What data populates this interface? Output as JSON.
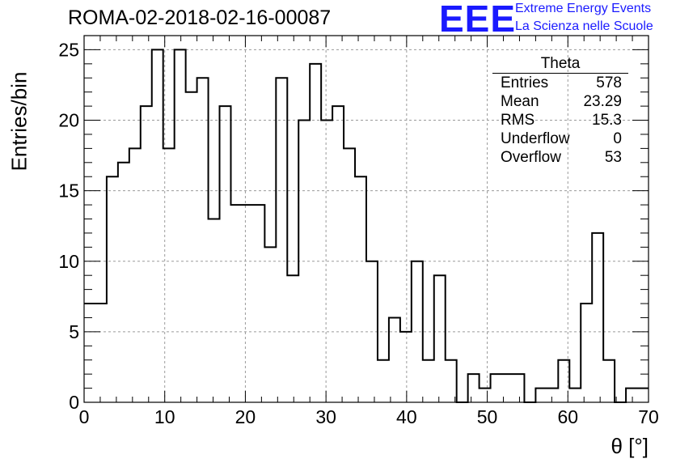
{
  "title": "ROMA-02-2018-02-16-00087",
  "logo": {
    "text": "EEE",
    "line1": "Extreme Energy Events",
    "line2": "La Scienza nelle Scuole",
    "color": "#1a1aff"
  },
  "stats": {
    "title": "Theta",
    "rows": [
      {
        "label": "Entries",
        "value": "578"
      },
      {
        "label": "Mean",
        "value": "23.29"
      },
      {
        "label": "RMS",
        "value": "15.3"
      },
      {
        "label": "Underflow",
        "value": "0"
      },
      {
        "label": "Overflow",
        "value": "53"
      }
    ]
  },
  "chart_data": {
    "type": "bar",
    "histogram": true,
    "xlabel": "θ [°]",
    "ylabel": "Entries/bin",
    "xlim": [
      0,
      70
    ],
    "ylim": [
      0,
      26
    ],
    "bin_width": 1.4,
    "x_ticks": [
      "0",
      "10",
      "20",
      "30",
      "40",
      "50",
      "60",
      "70"
    ],
    "y_ticks": [
      "0",
      "5",
      "10",
      "15",
      "20",
      "25"
    ],
    "grid": true,
    "values": [
      7,
      7,
      16,
      17,
      18,
      21,
      25,
      18,
      25,
      22,
      23,
      13,
      21,
      14,
      14,
      14,
      11,
      23,
      9,
      20,
      24,
      20,
      21,
      18,
      16,
      10,
      3,
      6,
      5,
      10,
      3,
      9,
      3,
      0,
      2,
      1,
      2,
      2,
      2,
      0,
      1,
      1,
      3,
      1,
      7,
      12,
      3,
      0,
      1,
      1
    ]
  }
}
